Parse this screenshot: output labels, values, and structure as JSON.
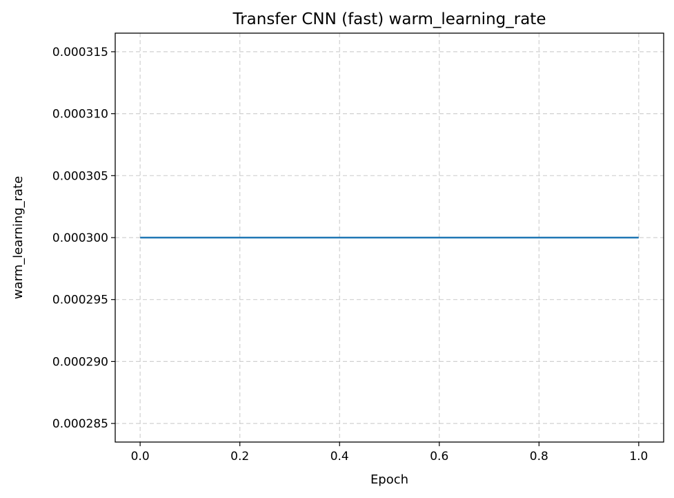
{
  "chart_data": {
    "type": "line",
    "title": "Transfer CNN (fast) warm_learning_rate",
    "xlabel": "Epoch",
    "ylabel": "warm_learning_rate",
    "xlim": [
      -0.05,
      1.05
    ],
    "ylim": [
      0.0002835,
      0.0003165
    ],
    "xticks": [
      0.0,
      0.2,
      0.4,
      0.6,
      0.8,
      1.0
    ],
    "xtick_labels": [
      "0.0",
      "0.2",
      "0.4",
      "0.6",
      "0.8",
      "1.0"
    ],
    "yticks": [
      0.000285,
      0.00029,
      0.000295,
      0.0003,
      0.000305,
      0.00031,
      0.000315
    ],
    "ytick_labels": [
      "0.000285",
      "0.000290",
      "0.000295",
      "0.000300",
      "0.000305",
      "0.000310",
      "0.000315"
    ],
    "grid": true,
    "series": [
      {
        "x": [
          0,
          1
        ],
        "y": [
          0.0003,
          0.0003
        ],
        "color": "#1f77b4"
      }
    ]
  }
}
